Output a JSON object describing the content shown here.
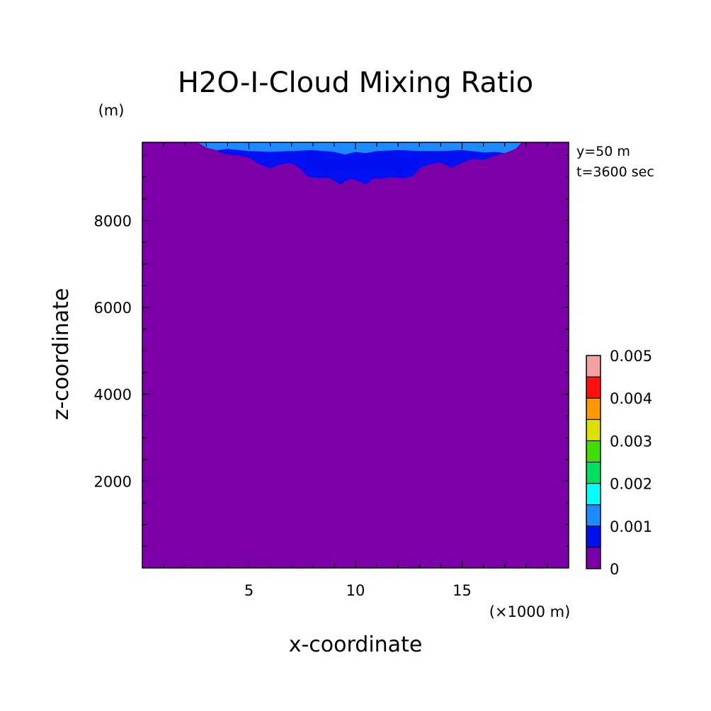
{
  "chart_data": {
    "type": "heatmap",
    "title": "H2O-I-Cloud Mixing Ratio",
    "xlabel": "x-coordinate",
    "ylabel": "z-coordinate",
    "x_unit": "(×1000 m)",
    "y_unit": "(m)",
    "info": [
      "y=50 m",
      "t=3600 sec"
    ],
    "xlim": [
      0,
      20
    ],
    "ylim": [
      0,
      9800
    ],
    "x_ticks": [
      5,
      10,
      15
    ],
    "x_tick_labels": [
      "5",
      "10",
      "15"
    ],
    "y_ticks": [
      2000,
      4000,
      6000,
      8000
    ],
    "y_tick_labels": [
      "2000",
      "4000",
      "6000",
      "8000"
    ],
    "colorbar": {
      "levels": [
        0,
        0.0005,
        0.001,
        0.0015,
        0.002,
        0.0025,
        0.003,
        0.0035,
        0.004,
        0.0045,
        0.005
      ],
      "colors": [
        "#7b00a8",
        "#0010f0",
        "#1e8aff",
        "#00ffff",
        "#00e060",
        "#40dd00",
        "#dde000",
        "#ff9900",
        "#ff1010",
        "#f5a0a0"
      ],
      "tick_values": [
        0,
        0.001,
        0.002,
        0.003,
        0.004,
        0.005
      ],
      "tick_labels": [
        "0",
        "0.001",
        "0.002",
        "0.003",
        "0.004",
        "0.005"
      ]
    },
    "background_value": 0,
    "regions": [
      {
        "name": "0.0005-0.001",
        "color": "#0010f0",
        "boundary_x": [
          2.7,
          3.3,
          3.6,
          4.0,
          4.5,
          5.0,
          5.5,
          6.0,
          6.5,
          7.0,
          7.4,
          7.8,
          8.2,
          8.8,
          9.3,
          9.5,
          9.8,
          10.2,
          10.5,
          10.8,
          11.2,
          11.7,
          12.2,
          12.7,
          13.0,
          13.5,
          14.0,
          14.5,
          15.0,
          15.5,
          16.0,
          16.5,
          17.0,
          17.5,
          17.7
        ],
        "boundary_z": [
          9800,
          9700,
          9580,
          9520,
          9500,
          9450,
          9300,
          9200,
          9300,
          9320,
          9200,
          9000,
          8980,
          8970,
          8830,
          8900,
          8960,
          8900,
          8830,
          8960,
          8960,
          9000,
          8970,
          9020,
          9200,
          9300,
          9330,
          9220,
          9330,
          9420,
          9400,
          9480,
          9560,
          9650,
          9800
        ]
      },
      {
        "name": "0.001-0.0015",
        "color": "#1e8aff",
        "boundary_x": [
          2.6,
          3.0,
          3.5,
          4.0,
          5.0,
          6.0,
          7.0,
          8.0,
          9.0,
          9.5,
          10.0,
          10.5,
          11.0,
          12.0,
          13.0,
          14.0,
          15.0,
          16.0,
          16.6,
          17.0,
          17.5,
          17.8
        ],
        "boundary_z": [
          9800,
          9680,
          9620,
          9650,
          9600,
          9580,
          9600,
          9620,
          9580,
          9520,
          9580,
          9550,
          9600,
          9620,
          9600,
          9600,
          9620,
          9570,
          9580,
          9550,
          9650,
          9800
        ]
      }
    ]
  }
}
